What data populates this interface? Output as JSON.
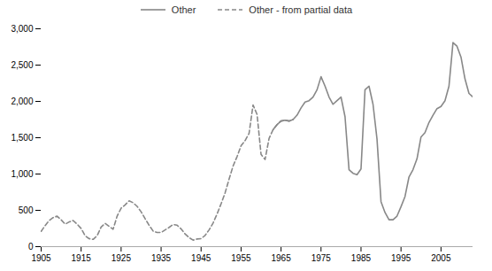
{
  "chart_data": {
    "type": "line",
    "x": [
      1905,
      1906,
      1907,
      1908,
      1909,
      1910,
      1911,
      1912,
      1913,
      1914,
      1915,
      1916,
      1917,
      1918,
      1919,
      1920,
      1921,
      1922,
      1923,
      1924,
      1925,
      1926,
      1927,
      1928,
      1929,
      1930,
      1931,
      1932,
      1933,
      1934,
      1935,
      1936,
      1937,
      1938,
      1939,
      1940,
      1941,
      1942,
      1943,
      1944,
      1945,
      1946,
      1947,
      1948,
      1949,
      1950,
      1951,
      1952,
      1953,
      1954,
      1955,
      1956,
      1957,
      1958,
      1959,
      1960,
      1961,
      1962,
      1963,
      1964,
      1965,
      1966,
      1967,
      1968,
      1969,
      1970,
      1971,
      1972,
      1973,
      1974,
      1975,
      1976,
      1977,
      1978,
      1979,
      1980,
      1981,
      1982,
      1983,
      1984,
      1985,
      1986,
      1987,
      1988,
      1989,
      1990,
      1991,
      1992,
      1993,
      1994,
      1995,
      1996,
      1997,
      1998,
      1999,
      2000,
      2001,
      2002,
      2003,
      2004,
      2005,
      2006,
      2007,
      2008,
      2009,
      2010,
      2011,
      2012,
      2013
    ],
    "series": [
      {
        "name": "Other",
        "color": "#888888",
        "line_style": "solid",
        "values": [
          null,
          null,
          null,
          null,
          null,
          null,
          null,
          null,
          null,
          null,
          null,
          null,
          null,
          null,
          null,
          null,
          null,
          null,
          null,
          null,
          null,
          null,
          null,
          null,
          null,
          null,
          null,
          null,
          null,
          null,
          null,
          null,
          null,
          null,
          null,
          null,
          null,
          null,
          null,
          null,
          null,
          null,
          null,
          null,
          null,
          null,
          null,
          null,
          null,
          null,
          null,
          null,
          null,
          null,
          null,
          null,
          null,
          null,
          1610,
          1680,
          1730,
          1740,
          1730,
          1750,
          1810,
          1910,
          1990,
          2010,
          2060,
          2160,
          2340,
          2210,
          2060,
          1960,
          2010,
          2060,
          1790,
          1060,
          1010,
          990,
          1070,
          2160,
          2210,
          1960,
          1480,
          620,
          470,
          370,
          370,
          420,
          550,
          690,
          960,
          1060,
          1210,
          1510,
          1570,
          1710,
          1810,
          1900,
          1930,
          2010,
          2210,
          2810,
          2760,
          2610,
          2310,
          2110,
          2060
        ]
      },
      {
        "name": "Other - from partial data",
        "color": "#888888",
        "line_style": "dashed",
        "values": [
          210,
          290,
          360,
          400,
          420,
          370,
          310,
          340,
          360,
          310,
          250,
          150,
          110,
          100,
          150,
          270,
          320,
          280,
          240,
          420,
          530,
          575,
          630,
          605,
          555,
          480,
          385,
          295,
          215,
          195,
          195,
          230,
          265,
          305,
          295,
          245,
          175,
          125,
          90,
          105,
          110,
          155,
          230,
          325,
          450,
          590,
          740,
          930,
          1110,
          1240,
          1390,
          1460,
          1560,
          1950,
          1820,
          1270,
          1200,
          1490,
          1610,
          1680,
          1730,
          1740,
          1730,
          1750,
          null,
          null,
          null,
          null,
          null,
          null,
          null,
          null,
          null,
          null,
          null,
          null,
          null,
          null,
          null,
          null,
          null,
          null,
          null,
          null,
          null,
          null,
          null,
          null,
          null,
          null,
          null,
          null,
          null,
          null,
          null,
          null,
          null,
          null,
          null,
          null,
          null,
          null,
          null,
          null,
          null,
          null,
          null,
          null,
          null
        ]
      }
    ],
    "xlim": [
      1905,
      2013
    ],
    "xticks": [
      1905,
      1915,
      1925,
      1935,
      1945,
      1955,
      1965,
      1975,
      1985,
      1995,
      2005
    ],
    "ylim": [
      0,
      3000
    ],
    "yticks": [
      0,
      500,
      {
        "value": 1000,
        "label": "1,000"
      },
      {
        "value": 1500,
        "label": "1,500"
      },
      {
        "value": 2000,
        "label": "2,000"
      },
      {
        "value": 2500,
        "label": "2,500"
      },
      {
        "value": 3000,
        "label": "3,000"
      }
    ],
    "grid": false,
    "legend": "top"
  }
}
